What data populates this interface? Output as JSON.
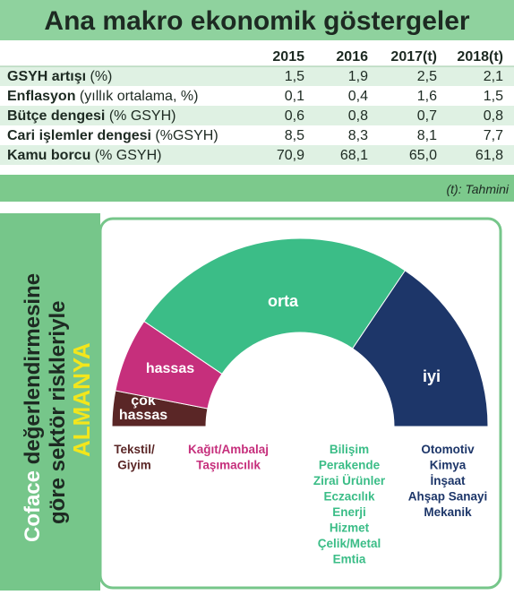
{
  "header": {
    "title": "Ana makro ekonomik göstergeler"
  },
  "table": {
    "columns": [
      "2015",
      "2016",
      "2017(t)",
      "2018(t)"
    ],
    "rows": [
      {
        "name": "GSYH artışı",
        "unit": "(%)",
        "values": [
          "1,5",
          "1,9",
          "2,5",
          "2,1"
        ]
      },
      {
        "name": "Enflasyon",
        "unit": "(yıllık ortalama, %)",
        "values": [
          "0,1",
          "0,4",
          "1,6",
          "1,5"
        ]
      },
      {
        "name": "Bütçe dengesi",
        "unit": "(% GSYH)",
        "values": [
          "0,6",
          "0,8",
          "0,7",
          "0,8"
        ]
      },
      {
        "name": "Cari işlemler dengesi",
        "unit": "(%GSYH)",
        "values": [
          "8,5",
          "8,3",
          "8,1",
          "7,7"
        ]
      },
      {
        "name": "Kamu borcu",
        "unit": "(% GSYH)",
        "values": [
          "70,9",
          "68,1",
          "65,0",
          "61,8"
        ]
      }
    ],
    "note": "(t): Tahmini"
  },
  "side_panel": {
    "highlight": "Coface",
    "line1": "değerlendirmesine",
    "line2": "göre sektör riskleriyle",
    "country": "ALMANYA"
  },
  "gauge": {
    "segments": [
      {
        "label_lines": [
          "çok",
          "hassas"
        ],
        "sectors": [
          "Tekstil/",
          "Giyim"
        ]
      },
      {
        "label_lines": [
          "hassas"
        ],
        "sectors": [
          "Kağıt/Ambalaj",
          "Taşımacılık"
        ]
      },
      {
        "label_lines": [
          "orta"
        ],
        "sectors": [
          "Bilişim",
          "Perakende",
          "Zirai Ürünler",
          "Eczacılık",
          "Enerji",
          "Hizmet",
          "Çelik/Metal",
          "Emtia"
        ]
      },
      {
        "label_lines": [
          "iyi"
        ],
        "sectors": [
          "Otomotiv",
          "Kimya",
          "İnşaat",
          "Ahşap Sanayi",
          "Mekanik"
        ]
      }
    ]
  }
}
